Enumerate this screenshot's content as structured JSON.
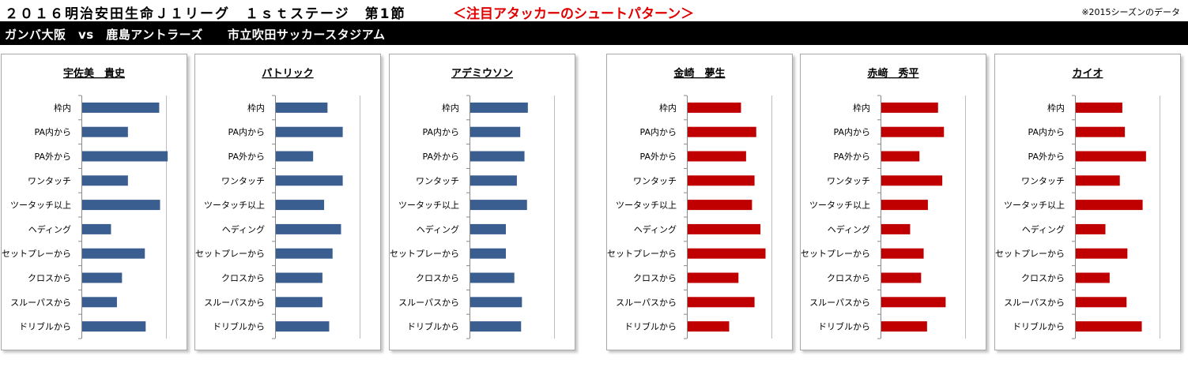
{
  "header": {
    "title": "２０１６明治安田生命Ｊ１リーグ　１ｓｔステージ　第1節",
    "highlight": "＜注目アタッカーのシュートパターン＞",
    "note": "※2015シーズンのデータ",
    "match": "ガンバ大阪　vs　鹿島アントラーズ　　市立吹田サッカースタジアム"
  },
  "colors": {
    "home": "#3b5e91",
    "away": "#c00000",
    "axis": "#888888"
  },
  "chart_data": [
    {
      "type": "bar",
      "orientation": "horizontal",
      "team": "ガンバ大阪",
      "title": "宇佐美　貴史",
      "categories": [
        "枠内",
        "PA内から",
        "PA外から",
        "ワンタッチ",
        "ツータッチ以上",
        "ヘディング",
        "セットプレーから",
        "クロスから",
        "スルーパスから",
        "ドリブルから"
      ],
      "values": [
        0.92,
        0.55,
        1.02,
        0.55,
        0.93,
        0.35,
        0.75,
        0.48,
        0.42,
        0.76
      ],
      "xlim": [
        0,
        1.0
      ],
      "grid": true,
      "legend": "none"
    },
    {
      "type": "bar",
      "orientation": "horizontal",
      "team": "ガンバ大阪",
      "title": "パトリック",
      "categories": [
        "枠内",
        "PA内から",
        "PA外から",
        "ワンタッチ",
        "ツータッチ以上",
        "ヘディング",
        "セットプレーから",
        "クロスから",
        "スルーパスから",
        "ドリブルから"
      ],
      "values": [
        0.62,
        0.8,
        0.45,
        0.8,
        0.58,
        0.78,
        0.68,
        0.56,
        0.56,
        0.64
      ],
      "xlim": [
        0,
        1.0
      ],
      "grid": true,
      "legend": "none"
    },
    {
      "type": "bar",
      "orientation": "horizontal",
      "team": "ガンバ大阪",
      "title": "アデミウソン",
      "categories": [
        "枠内",
        "PA内から",
        "PA外から",
        "ワンタッチ",
        "ツータッチ以上",
        "ヘディング",
        "セットプレーから",
        "クロスから",
        "スルーパスから",
        "ドリブルから"
      ],
      "values": [
        0.69,
        0.6,
        0.65,
        0.56,
        0.68,
        0.43,
        0.43,
        0.53,
        0.62,
        0.61
      ],
      "xlim": [
        0,
        1.0
      ],
      "grid": true,
      "legend": "none"
    },
    {
      "type": "bar",
      "orientation": "horizontal",
      "team": "鹿島アントラーズ",
      "title": "金崎　夢生",
      "categories": [
        "枠内",
        "PA内から",
        "PA外から",
        "ワンタッチ",
        "ツータッチ以上",
        "ヘディング",
        "セットプレーから",
        "クロスから",
        "スルーパスから",
        "ドリブルから"
      ],
      "values": [
        0.64,
        0.82,
        0.7,
        0.8,
        0.77,
        0.87,
        0.93,
        0.61,
        0.8,
        0.5
      ],
      "xlim": [
        0,
        1.0
      ],
      "grid": true,
      "legend": "none"
    },
    {
      "type": "bar",
      "orientation": "horizontal",
      "team": "鹿島アントラーズ",
      "title": "赤﨑　秀平",
      "categories": [
        "枠内",
        "PA内から",
        "PA外から",
        "ワンタッチ",
        "ツータッチ以上",
        "ヘディング",
        "セットプレーから",
        "クロスから",
        "スルーパスから",
        "ドリブルから"
      ],
      "values": [
        0.68,
        0.75,
        0.46,
        0.73,
        0.56,
        0.35,
        0.51,
        0.48,
        0.77,
        0.55
      ],
      "xlim": [
        0,
        1.0
      ],
      "grid": true,
      "legend": "none"
    },
    {
      "type": "bar",
      "orientation": "horizontal",
      "team": "鹿島アントラーズ",
      "title": "カイオ",
      "categories": [
        "枠内",
        "PA内から",
        "PA外から",
        "ワンタッチ",
        "ツータッチ以上",
        "ヘディング",
        "セットプレーから",
        "クロスから",
        "スルーパスから",
        "ドリブルから"
      ],
      "values": [
        0.56,
        0.59,
        0.84,
        0.53,
        0.8,
        0.36,
        0.62,
        0.41,
        0.61,
        0.79
      ],
      "xlim": [
        0,
        1.0
      ],
      "grid": true,
      "legend": "none"
    }
  ]
}
